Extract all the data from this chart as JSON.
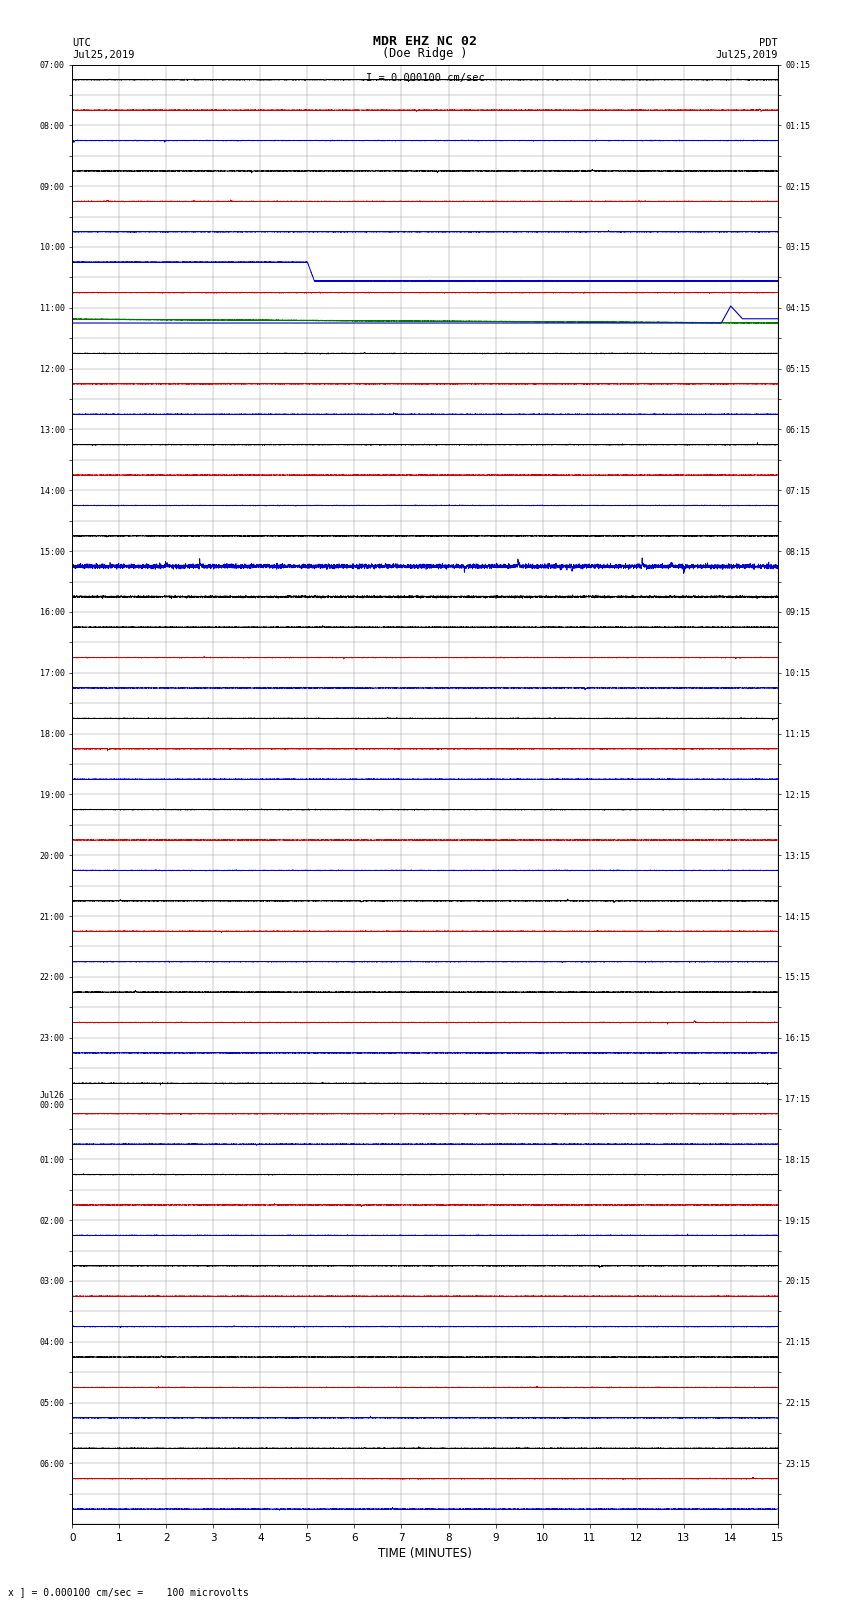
{
  "title_line1": "MDR EHZ NC 02",
  "title_line2": "(Doe Ridge )",
  "scale_label": "I = 0.000100 cm/sec",
  "left_label_line1": "UTC",
  "left_label_line2": "Jul25,2019",
  "right_label_line1": "PDT",
  "right_label_line2": "Jul25,2019",
  "bottom_note": "x ] = 0.000100 cm/sec =    100 microvolts",
  "xlabel": "TIME (MINUTES)",
  "bg_color": "#ffffff",
  "grid_color": "#999999",
  "utc_times_left": [
    "07:00",
    "",
    "08:00",
    "",
    "09:00",
    "",
    "10:00",
    "",
    "11:00",
    "",
    "12:00",
    "",
    "13:00",
    "",
    "14:00",
    "",
    "15:00",
    "",
    "16:00",
    "",
    "17:00",
    "",
    "18:00",
    "",
    "19:00",
    "",
    "20:00",
    "",
    "21:00",
    "",
    "22:00",
    "",
    "23:00",
    "",
    "Jul26\n00:00",
    "",
    "01:00",
    "",
    "02:00",
    "",
    "03:00",
    "",
    "04:00",
    "",
    "05:00",
    "",
    "06:00",
    ""
  ],
  "pdt_times_right": [
    "00:15",
    "",
    "01:15",
    "",
    "02:15",
    "",
    "03:15",
    "",
    "04:15",
    "",
    "05:15",
    "",
    "06:15",
    "",
    "07:15",
    "",
    "08:15",
    "",
    "09:15",
    "",
    "10:15",
    "",
    "11:15",
    "",
    "12:15",
    "",
    "13:15",
    "",
    "14:15",
    "",
    "15:15",
    "",
    "16:15",
    "",
    "17:15",
    "",
    "18:15",
    "",
    "19:15",
    "",
    "20:15",
    "",
    "21:15",
    "",
    "22:15",
    "",
    "23:15",
    ""
  ],
  "n_rows": 48,
  "time_axis_max": 15,
  "figwidth": 8.5,
  "figheight": 16.13,
  "dpi": 100,
  "row_colors": [
    "black",
    "red",
    "blue",
    "black",
    "red",
    "blue",
    "black",
    "red",
    "blue",
    "black",
    "red",
    "blue",
    "black",
    "red",
    "blue",
    "black",
    "red",
    "blue",
    "black",
    "red",
    "blue",
    "black",
    "red",
    "blue",
    "black",
    "red",
    "blue",
    "black",
    "red",
    "blue",
    "black",
    "red",
    "blue",
    "black",
    "red",
    "blue",
    "black",
    "red",
    "blue",
    "black",
    "red",
    "blue",
    "black",
    "red",
    "blue",
    "black",
    "red",
    "blue"
  ]
}
